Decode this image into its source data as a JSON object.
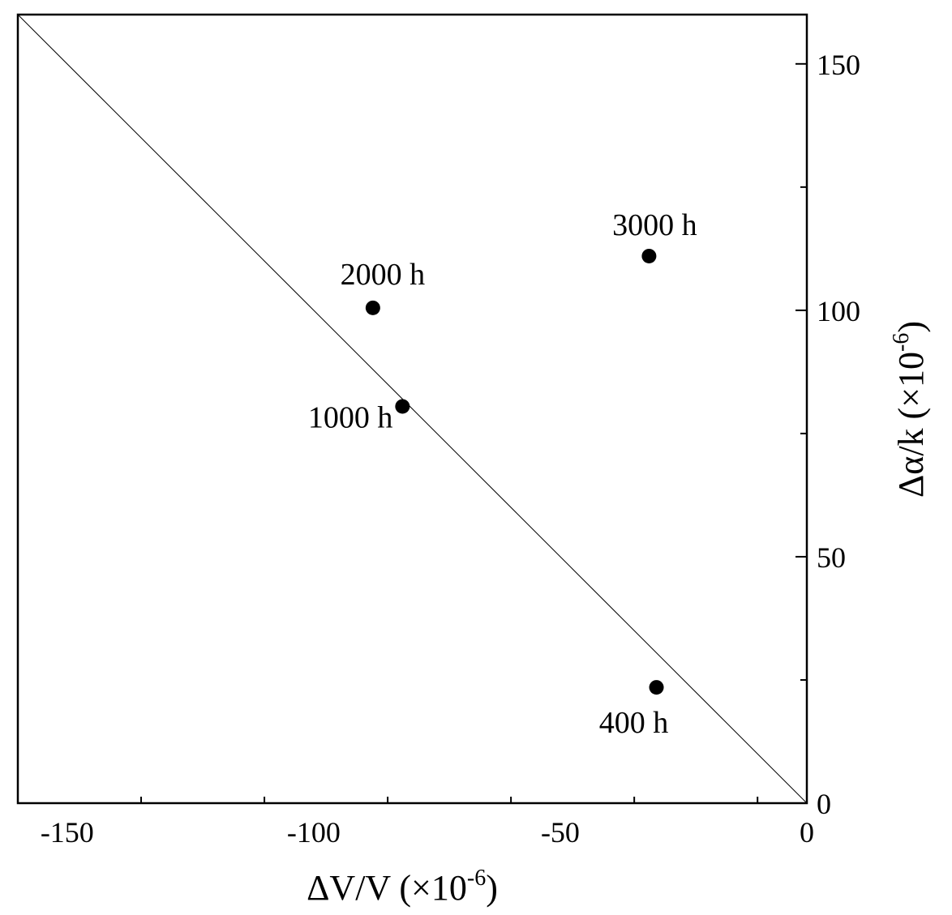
{
  "chart_data": {
    "type": "scatter",
    "xlabel": {
      "main": "ΔV/V (×10",
      "sup": "-6",
      "end": ")"
    },
    "ylabel": {
      "main": "Δα/k (×10",
      "sup": "-6",
      "end": ")"
    },
    "xlim": [
      -160,
      0
    ],
    "ylim": [
      0,
      160
    ],
    "x_ticks": [
      -150,
      -100,
      -50,
      0
    ],
    "x_tick_labels": [
      "-150",
      "-100",
      "-50",
      "0"
    ],
    "y_ticks": [
      0,
      50,
      100,
      150
    ],
    "y_tick_labels": [
      "0",
      "50",
      "100",
      "150"
    ],
    "y_axis_side": "right",
    "grid": false,
    "reference_line": {
      "from": [
        -160,
        160
      ],
      "to": [
        0,
        0
      ]
    },
    "points": [
      {
        "x": -30.5,
        "y": 23.5,
        "label": "400 h"
      },
      {
        "x": -82,
        "y": 80.5,
        "label": "1000 h"
      },
      {
        "x": -88,
        "y": 100.5,
        "label": "2000 h"
      },
      {
        "x": -32,
        "y": 111,
        "label": "3000 h"
      }
    ],
    "colors": {
      "axes": "#000000",
      "points": "#000000"
    }
  }
}
